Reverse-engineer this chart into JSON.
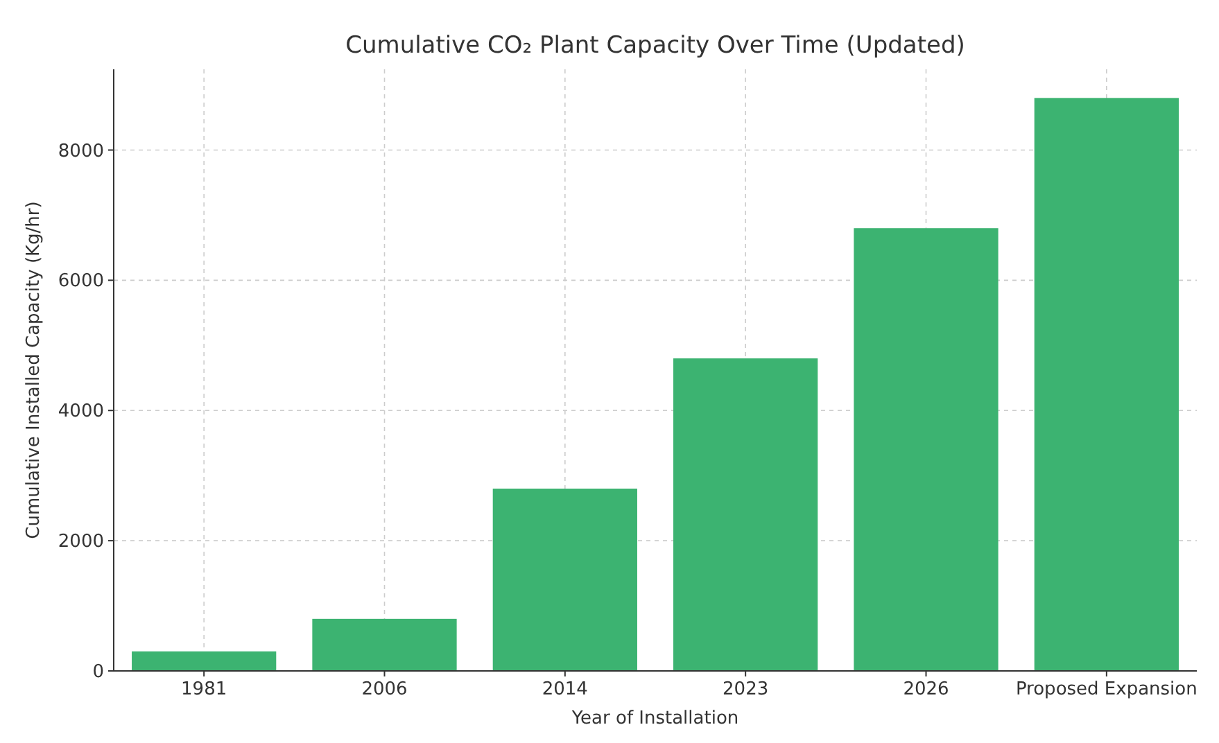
{
  "chart_data": {
    "type": "bar",
    "title": "Cumulative CO₂ Plant Capacity Over Time (Updated)",
    "xlabel": "Year of Installation",
    "ylabel": "Cumulative Installed Capacity (Kg/hr)",
    "categories": [
      "1981",
      "2006",
      "2014",
      "2023",
      "2026",
      "Proposed Expansion"
    ],
    "values": [
      300,
      800,
      2800,
      4800,
      6800,
      8800
    ],
    "color": "#3cb371",
    "ylim": [
      0,
      9240
    ],
    "yticks": [
      0,
      2000,
      4000,
      6000,
      8000
    ],
    "grid": true
  }
}
